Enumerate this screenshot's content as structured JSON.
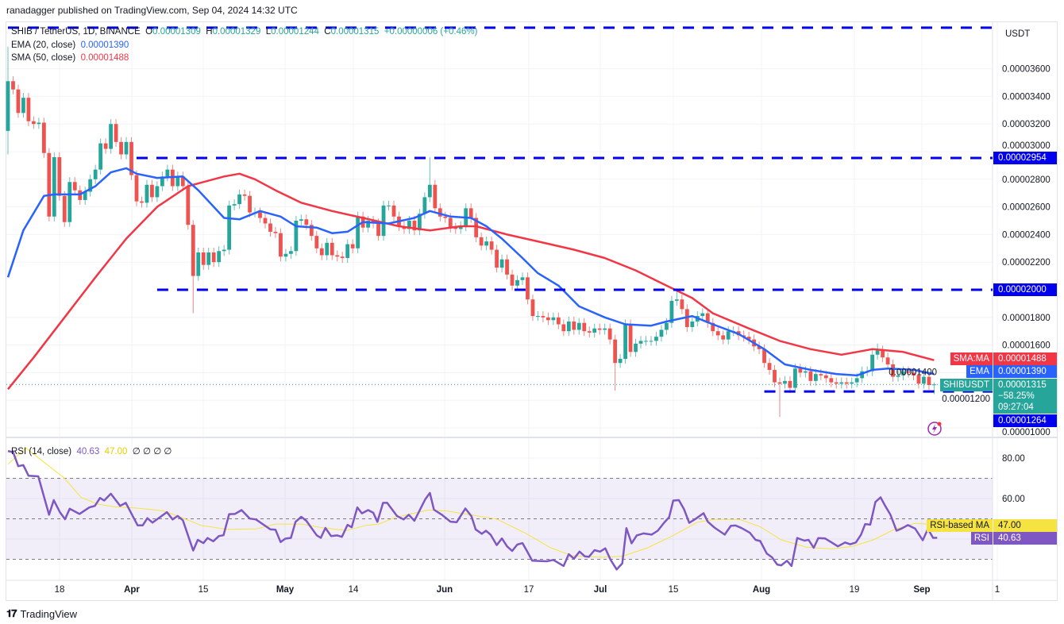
{
  "publish_line": "ranadagger published on TradingView.com, Sep 04, 2024 14:32 UTC",
  "legend": {
    "symbol": "SHIB / TetherUS, 1D, BINANCE",
    "o_label": "O",
    "o_value": "0.00001309",
    "h_label": "H",
    "h_value": "0.00001329",
    "l_label": "L",
    "l_value": "0.00001244",
    "c_label": "C",
    "c_value": "0.00001315",
    "change": "+0.00000006 (+0.46%)",
    "ema_label": "EMA (20, close)",
    "ema_value": "0.00001390",
    "sma_label": "SMA (50, close)",
    "sma_value": "0.00001488",
    "rsi_label": "RSI (14, close)",
    "rsi_value": "40.63",
    "rsi_ma_value": "47.00",
    "rsi_extra": "∅ ∅ ∅ ∅"
  },
  "price_axis": {
    "currency": "USDT",
    "labels": [
      "0.00003600",
      "0.00003400",
      "0.00003200",
      "0.00003000",
      "0.00002800",
      "0.00002600",
      "0.00002400",
      "0.00002200",
      "0.00001800",
      "0.00001600",
      "0.00001400",
      "0.00001200",
      "0.00001000"
    ]
  },
  "markers": {
    "sma_tag": "SMA:MA",
    "sma_value": "0.00001488",
    "ema_tag": "EMA",
    "ema_value": "0.00001390",
    "symbol_tag": "SHIBUSDT",
    "last_price": "0.00001315",
    "change_pct": "−58.25%",
    "countdown": "09:27:04",
    "level_high": "0.00002954",
    "level_mid": "0.00002000",
    "level_low": "0.00001264",
    "rsi_ma_tag": "RSI-based MA",
    "rsi_ma_value": "47.00",
    "rsi_tag": "RSI",
    "rsi_value": "40.63"
  },
  "rsi_axis": {
    "labels": [
      "80.00",
      "60.00"
    ]
  },
  "date_axis": {
    "labels": [
      "18",
      "Apr",
      "15",
      "May",
      "14",
      "Jun",
      "17",
      "Jul",
      "15",
      "Aug",
      "19",
      "Sep",
      "1"
    ]
  },
  "footer": {
    "brand": "TradingView"
  },
  "colors": {
    "up": "#26a69a",
    "down": "#ef5350",
    "ema": "#2962ff",
    "sma": "#f23645",
    "level": "#0000ee",
    "rsi": "#7e57c2",
    "rsi_ma": "#f5e342"
  },
  "chart_data": {
    "type": "candlestick",
    "title": "SHIB / TetherUS, 1D, BINANCE",
    "price_scale": 1e-06,
    "ylim": [
      9.5,
      39.5
    ],
    "first_open": 31.5,
    "closes": [
      35.1,
      34.5,
      32.8,
      33.9,
      32.2,
      32.0,
      32.1,
      29.9,
      25.3,
      29.6,
      26.8,
      24.9,
      27.8,
      27.2,
      26.5,
      27.1,
      28.0,
      28.7,
      30.6,
      30.2,
      32.0,
      30.7,
      29.8,
      30.7,
      28.3,
      26.4,
      26.3,
      27.6,
      26.7,
      27.5,
      28.2,
      28.7,
      27.5,
      28.2,
      27.5,
      24.7,
      21.0,
      22.7,
      21.8,
      22.7,
      22.0,
      22.8,
      22.9,
      26.1,
      26.2,
      26.9,
      26.8,
      25.6,
      25.6,
      25.2,
      24.8,
      24.2,
      24.1,
      22.4,
      22.6,
      22.8,
      25.0,
      25.1,
      24.7,
      23.9,
      23.0,
      22.5,
      23.4,
      22.5,
      22.4,
      22.3,
      23.3,
      23.0,
      25.3,
      24.5,
      25.0,
      24.8,
      23.9,
      26.1,
      26.1,
      25.3,
      24.6,
      24.4,
      25.0,
      24.3,
      25.5,
      26.7,
      27.6,
      25.9,
      25.3,
      25.2,
      24.5,
      24.4,
      24.6,
      25.9,
      25.2,
      23.8,
      23.2,
      23.5,
      22.9,
      21.6,
      22.2,
      21.1,
      20.3,
      20.7,
      20.9,
      19.3,
      18.1,
      18.1,
      18.0,
      17.8,
      18.0,
      17.5,
      17.0,
      17.7,
      17.1,
      17.6,
      17.0,
      16.9,
      17.2,
      17.1,
      17.2,
      16.4,
      14.7,
      15.0,
      17.5,
      15.5,
      16.1,
      16.3,
      16.3,
      16.3,
      16.6,
      17.1,
      17.6,
      19.2,
      19.3,
      18.6,
      17.3,
      17.7,
      18.1,
      18.3,
      17.6,
      17.0,
      16.7,
      16.4,
      17.0,
      17.0,
      16.7,
      16.6,
      16.4,
      15.9,
      15.7,
      14.7,
      14.2,
      13.3,
      13.2,
      13.4,
      12.9,
      14.3,
      14.0,
      14.1,
      13.4,
      13.9,
      13.8,
      13.6,
      13.3,
      13.2,
      13.3,
      13.2,
      13.3,
      13.6,
      14.1,
      14.1,
      15.3,
      15.6,
      15.1,
      14.6,
      13.7,
      13.8,
      14.1,
      14.0,
      13.8,
      13.2,
      13.7,
      13.1,
      13.15
    ],
    "wick_overrides": [
      {
        "i": 0,
        "h": 37.6,
        "l": 29.8
      },
      {
        "i": 36,
        "l": 18.3
      },
      {
        "i": 82,
        "h": 29.6
      },
      {
        "i": 118,
        "l": 12.7
      },
      {
        "i": 130,
        "h": 20.1
      },
      {
        "i": 150,
        "l": 10.8
      },
      {
        "i": 169,
        "h": 16.1
      },
      {
        "i": 180,
        "h": 13.29,
        "l": 12.44
      }
    ],
    "ema20": [
      [
        0,
        20.9
      ],
      [
        3,
        24.3
      ],
      [
        7,
        26.8
      ],
      [
        9,
        26.9
      ],
      [
        14,
        26.9
      ],
      [
        17,
        27.5
      ],
      [
        20,
        28.5
      ],
      [
        23,
        28.8
      ],
      [
        25,
        28.4
      ],
      [
        29,
        28.1
      ],
      [
        34,
        28.2
      ],
      [
        37,
        27.2
      ],
      [
        42,
        25.2
      ],
      [
        45,
        25.1
      ],
      [
        49,
        25.7
      ],
      [
        53,
        25.3
      ],
      [
        56,
        24.6
      ],
      [
        60,
        24.5
      ],
      [
        63,
        24.1
      ],
      [
        66,
        24.2
      ],
      [
        69,
        24.9
      ],
      [
        74,
        24.8
      ],
      [
        79,
        25.2
      ],
      [
        82,
        25.7
      ],
      [
        86,
        25.3
      ],
      [
        90,
        25.2
      ],
      [
        93,
        24.6
      ],
      [
        96,
        23.7
      ],
      [
        100,
        22.3
      ],
      [
        103,
        21.2
      ],
      [
        107,
        20.3
      ],
      [
        111,
        18.8
      ],
      [
        116,
        18.0
      ],
      [
        120,
        17.5
      ],
      [
        125,
        17.4
      ],
      [
        128,
        17.7
      ],
      [
        133,
        18.1
      ],
      [
        137,
        17.5
      ],
      [
        142,
        16.8
      ],
      [
        147,
        15.7
      ],
      [
        151,
        14.6
      ],
      [
        156,
        14.2
      ],
      [
        161,
        13.9
      ],
      [
        165,
        13.8
      ],
      [
        168,
        14.2
      ],
      [
        171,
        14.3
      ],
      [
        176,
        14.2
      ],
      [
        180,
        13.9
      ]
    ],
    "sma50": [
      [
        0,
        12.8
      ],
      [
        5,
        15.1
      ],
      [
        11,
        18.0
      ],
      [
        17,
        20.9
      ],
      [
        23,
        23.7
      ],
      [
        29,
        26.0
      ],
      [
        35,
        27.5
      ],
      [
        42,
        28.2
      ],
      [
        45,
        28.4
      ],
      [
        48,
        28.0
      ],
      [
        52,
        27.2
      ],
      [
        57,
        26.3
      ],
      [
        63,
        25.7
      ],
      [
        69,
        25.2
      ],
      [
        76,
        24.6
      ],
      [
        82,
        24.3
      ],
      [
        88,
        24.6
      ],
      [
        91,
        24.6
      ],
      [
        97,
        24.0
      ],
      [
        103,
        23.5
      ],
      [
        110,
        22.9
      ],
      [
        116,
        22.3
      ],
      [
        122,
        21.4
      ],
      [
        128,
        20.3
      ],
      [
        133,
        19.4
      ],
      [
        137,
        18.3
      ],
      [
        144,
        17.2
      ],
      [
        150,
        16.3
      ],
      [
        156,
        15.7
      ],
      [
        162,
        15.3
      ],
      [
        168,
        15.7
      ],
      [
        174,
        15.5
      ],
      [
        180,
        14.9
      ]
    ],
    "levels": [
      {
        "price": 38.97,
        "from_index": 0
      },
      {
        "price": 29.54,
        "from_index": 25
      },
      {
        "price": 20.0,
        "from_index": 29
      },
      {
        "price": 12.64,
        "from_index": 147
      }
    ],
    "rsi": [
      [
        0,
        83.5
      ],
      [
        1,
        82.9
      ],
      [
        2,
        76
      ],
      [
        3,
        76.5
      ],
      [
        4,
        71.3
      ],
      [
        5.9,
        71
      ],
      [
        8,
        52
      ],
      [
        8.9,
        59.2
      ],
      [
        10.1,
        53.3
      ],
      [
        11.1,
        49.8
      ],
      [
        12,
        55
      ],
      [
        13.9,
        52.4
      ],
      [
        15.8,
        55.6
      ],
      [
        16.9,
        56.4
      ],
      [
        17.9,
        60.3
      ],
      [
        18.7,
        59
      ],
      [
        20,
        62.4
      ],
      [
        21.8,
        56.4
      ],
      [
        22.9,
        57.9
      ],
      [
        25.2,
        46.8
      ],
      [
        26.2,
        46.8
      ],
      [
        27.1,
        50.3
      ],
      [
        28.1,
        48.1
      ],
      [
        30.9,
        53.3
      ],
      [
        32,
        49.7
      ],
      [
        33,
        51.4
      ],
      [
        34,
        49.3
      ],
      [
        36,
        34.3
      ],
      [
        36.9,
        39.6
      ],
      [
        38,
        38
      ],
      [
        38.8,
        40.5
      ],
      [
        39.9,
        38.9
      ],
      [
        41,
        41.5
      ],
      [
        41.9,
        41.9
      ],
      [
        43,
        52.3
      ],
      [
        44.1,
        52.4
      ],
      [
        45.4,
        54.3
      ],
      [
        47,
        50.1
      ],
      [
        48.2,
        49.7
      ],
      [
        49.5,
        47.4
      ],
      [
        51,
        44.8
      ],
      [
        52,
        44.6
      ],
      [
        53,
        38.5
      ],
      [
        53.9,
        40.2
      ],
      [
        55,
        40.6
      ],
      [
        55.9,
        48.5
      ],
      [
        57,
        51
      ],
      [
        58,
        49
      ],
      [
        60,
        41.9
      ],
      [
        60.8,
        40.6
      ],
      [
        61.7,
        45.5
      ],
      [
        62.8,
        41.5
      ],
      [
        64,
        41.8
      ],
      [
        64.9,
        41.1
      ],
      [
        66,
        47
      ],
      [
        66.8,
        45.8
      ],
      [
        67.9,
        55.6
      ],
      [
        68.8,
        52.7
      ],
      [
        70,
        54.3
      ],
      [
        71,
        53
      ],
      [
        71.8,
        48.5
      ],
      [
        72.9,
        57.9
      ],
      [
        73.7,
        57.9
      ],
      [
        75.6,
        51.4
      ],
      [
        76.9,
        49.7
      ],
      [
        77.9,
        52
      ],
      [
        79,
        49
      ],
      [
        81.1,
        59.6
      ],
      [
        82,
        62.8
      ],
      [
        82.8,
        54.5
      ],
      [
        84.4,
        51.9
      ],
      [
        86,
        48.6
      ],
      [
        87.2,
        48.3
      ],
      [
        88.9,
        55.1
      ],
      [
        90.1,
        51.2
      ],
      [
        90.9,
        44.8
      ],
      [
        92.1,
        42.6
      ],
      [
        92.9,
        44.1
      ],
      [
        93.8,
        42.2
      ],
      [
        95,
        37
      ],
      [
        96,
        40.3
      ],
      [
        97,
        36.4
      ],
      [
        98,
        34.1
      ],
      [
        99,
        37.3
      ],
      [
        100,
        38
      ],
      [
        100.8,
        34.4
      ],
      [
        101.9,
        29.3
      ],
      [
        104.7,
        29
      ],
      [
        106,
        29.7
      ],
      [
        108,
        26.7
      ],
      [
        109,
        32.5
      ],
      [
        110,
        30.3
      ],
      [
        111.1,
        33.8
      ],
      [
        112.1,
        31.5
      ],
      [
        112.9,
        31.2
      ],
      [
        114,
        34.5
      ],
      [
        115.1,
        33.8
      ],
      [
        116.1,
        35.4
      ],
      [
        117.1,
        29.9
      ],
      [
        118.3,
        25
      ],
      [
        119.4,
        28
      ],
      [
        120.2,
        45.4
      ],
      [
        121.2,
        37.9
      ],
      [
        122.2,
        41.8
      ],
      [
        123.5,
        42.8
      ],
      [
        125.1,
        42.2
      ],
      [
        126.3,
        44.1
      ],
      [
        127.5,
        48
      ],
      [
        128.5,
        50.8
      ],
      [
        129.3,
        59
      ],
      [
        130.4,
        59.2
      ],
      [
        131.4,
        54.7
      ],
      [
        132.4,
        48
      ],
      [
        133.6,
        49.9
      ],
      [
        135.2,
        52.8
      ],
      [
        136,
        48.6
      ],
      [
        137.3,
        45.7
      ],
      [
        139.3,
        42.2
      ],
      [
        140.5,
        46.5
      ],
      [
        141.4,
        46.7
      ],
      [
        142.6,
        45.4
      ],
      [
        144.2,
        43.1
      ],
      [
        145.3,
        39.6
      ],
      [
        146.2,
        39
      ],
      [
        147.5,
        32.8
      ],
      [
        148.5,
        31
      ],
      [
        149.5,
        27.4
      ],
      [
        150.3,
        27
      ],
      [
        151.4,
        29.3
      ],
      [
        152.3,
        26.7
      ],
      [
        153.4,
        40.5
      ],
      [
        154.8,
        39.2
      ],
      [
        155.6,
        39.6
      ],
      [
        156.6,
        35.7
      ],
      [
        157.5,
        40.5
      ],
      [
        158.8,
        40.3
      ],
      [
        160.1,
        38.3
      ],
      [
        161.3,
        36.4
      ],
      [
        162.7,
        38.3
      ],
      [
        163.7,
        37.4
      ],
      [
        164.8,
        38.3
      ],
      [
        165.8,
        42.2
      ],
      [
        166.6,
        47.4
      ],
      [
        167.6,
        47.1
      ],
      [
        168.6,
        58.3
      ],
      [
        169.6,
        60.6
      ],
      [
        170.5,
        56.4
      ],
      [
        171.5,
        52.1
      ],
      [
        172.7,
        44.1
      ],
      [
        173.7,
        45.2
      ],
      [
        174.9,
        46.9
      ],
      [
        176.3,
        45.2
      ],
      [
        177.8,
        39.4
      ],
      [
        178.8,
        45
      ],
      [
        179.8,
        40.6
      ],
      [
        180.6,
        40.63
      ]
    ],
    "rsi_ma": [
      [
        0,
        77
      ],
      [
        3.5,
        85
      ],
      [
        11,
        70
      ],
      [
        14.2,
        60.6
      ],
      [
        17.4,
        57.3
      ],
      [
        20.5,
        56
      ],
      [
        25,
        55.3
      ],
      [
        30,
        54
      ],
      [
        33,
        51.4
      ],
      [
        37.5,
        46.8
      ],
      [
        42.5,
        44.8
      ],
      [
        48.2,
        45
      ],
      [
        52,
        47.4
      ],
      [
        57,
        47.4
      ],
      [
        61.4,
        45.5
      ],
      [
        65.8,
        44.2
      ],
      [
        69.6,
        46.8
      ],
      [
        72.1,
        47.4
      ],
      [
        75.3,
        50.7
      ],
      [
        81.6,
        54.3
      ],
      [
        85.4,
        53.8
      ],
      [
        89.8,
        52
      ],
      [
        95,
        49.9
      ],
      [
        100.7,
        42.8
      ],
      [
        105.5,
        35.7
      ],
      [
        109.6,
        31.8
      ],
      [
        115.3,
        31
      ],
      [
        119.4,
        31.5
      ],
      [
        124.3,
        35.7
      ],
      [
        129.1,
        41.5
      ],
      [
        134,
        48.3
      ],
      [
        137.3,
        49.7
      ],
      [
        142.2,
        49.7
      ],
      [
        146.2,
        46.1
      ],
      [
        150.3,
        39.6
      ],
      [
        155.2,
        36
      ],
      [
        160.1,
        35.1
      ],
      [
        164.1,
        36.4
      ],
      [
        168.2,
        39.6
      ],
      [
        172.3,
        44.8
      ],
      [
        176.3,
        47.8
      ],
      [
        180.6,
        47.0
      ]
    ],
    "rsi_levels": [
      70,
      50,
      30
    ],
    "rsi_ylim": [
      20,
      90
    ]
  }
}
